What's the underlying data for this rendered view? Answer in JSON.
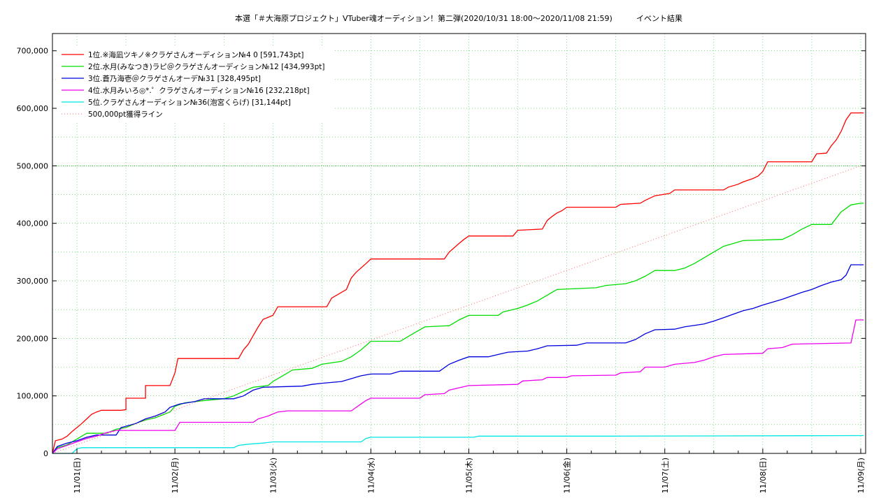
{
  "chart_data": {
    "type": "line",
    "title": "本選「＃大海原プロジェクト」VTuber魂オーディション！第二弾(2020/10/31 18:00〜2020/11/08 21:59)",
    "subtitle": "イベント結果",
    "x_tick_labels": [
      "11/01(日)",
      "11/02(月)",
      "11/03(火)",
      "11/04(水)",
      "11/05(木)",
      "11/06(金)",
      "11/07(土)",
      "11/08(日)",
      "11/09(月)"
    ],
    "y_tick_labels": [
      "0",
      "100,000",
      "200,000",
      "300,000",
      "400,000",
      "500,000",
      "600,000",
      "700,000"
    ],
    "x_unit": "days from 11/01 00:00",
    "xlim": [
      -0.25,
      8.05
    ],
    "ylim": [
      0,
      730000
    ],
    "grid": true,
    "legend_position": "top-left",
    "series": [
      {
        "name": "1位.※海凪ツキノ※クラゲさんオーディション№4 0 [591,743pt]",
        "color": "#ff0000",
        "points": [
          [
            -0.25,
            0
          ],
          [
            -0.22,
            22000
          ],
          [
            -0.15,
            25000
          ],
          [
            -0.1,
            30000
          ],
          [
            -0.05,
            38000
          ],
          [
            0,
            45000
          ],
          [
            0.05,
            52000
          ],
          [
            0.1,
            60000
          ],
          [
            0.15,
            68000
          ],
          [
            0.2,
            72000
          ],
          [
            0.25,
            75000
          ],
          [
            0.45,
            75000
          ],
          [
            0.5,
            76000
          ],
          [
            0.5,
            96000
          ],
          [
            0.7,
            96000
          ],
          [
            0.7,
            118000
          ],
          [
            0.95,
            118000
          ],
          [
            1.0,
            140000
          ],
          [
            1.03,
            165000
          ],
          [
            1.65,
            165000
          ],
          [
            1.7,
            180000
          ],
          [
            1.75,
            190000
          ],
          [
            1.8,
            205000
          ],
          [
            1.85,
            220000
          ],
          [
            1.9,
            233000
          ],
          [
            2.0,
            240000
          ],
          [
            2.05,
            255000
          ],
          [
            2.55,
            255000
          ],
          [
            2.6,
            270000
          ],
          [
            2.75,
            285000
          ],
          [
            2.8,
            305000
          ],
          [
            2.85,
            315000
          ],
          [
            2.95,
            330000
          ],
          [
            3.0,
            338000
          ],
          [
            3.75,
            338000
          ],
          [
            3.8,
            350000
          ],
          [
            3.9,
            365000
          ],
          [
            3.95,
            372000
          ],
          [
            4.0,
            378000
          ],
          [
            4.45,
            378000
          ],
          [
            4.5,
            388000
          ],
          [
            4.75,
            390000
          ],
          [
            4.8,
            405000
          ],
          [
            4.85,
            412000
          ],
          [
            4.9,
            418000
          ],
          [
            4.95,
            422000
          ],
          [
            5.0,
            428000
          ],
          [
            5.5,
            428000
          ],
          [
            5.55,
            433000
          ],
          [
            5.75,
            435000
          ],
          [
            5.8,
            440000
          ],
          [
            5.9,
            448000
          ],
          [
            6.05,
            452000
          ],
          [
            6.1,
            458000
          ],
          [
            6.6,
            458000
          ],
          [
            6.65,
            463000
          ],
          [
            6.75,
            468000
          ],
          [
            6.8,
            472000
          ],
          [
            6.9,
            478000
          ],
          [
            6.95,
            482000
          ],
          [
            7.0,
            490000
          ],
          [
            7.05,
            507000
          ],
          [
            7.5,
            507000
          ],
          [
            7.55,
            521000
          ],
          [
            7.65,
            522000
          ],
          [
            7.7,
            535000
          ],
          [
            7.75,
            545000
          ],
          [
            7.8,
            560000
          ],
          [
            7.85,
            580000
          ],
          [
            7.9,
            592000
          ],
          [
            8.03,
            592000
          ]
        ]
      },
      {
        "name": "2位.水月(みなつき)ラピ＠クラゲさんオーディション№12 [434,993pt]",
        "color": "#00dd00",
        "points": [
          [
            -0.25,
            0
          ],
          [
            -0.2,
            10000
          ],
          [
            -0.1,
            15000
          ],
          [
            0,
            25000
          ],
          [
            0.05,
            30000
          ],
          [
            0.1,
            35000
          ],
          [
            0.3,
            35000
          ],
          [
            0.4,
            42000
          ],
          [
            0.5,
            45000
          ],
          [
            0.6,
            52000
          ],
          [
            0.7,
            58000
          ],
          [
            0.8,
            62000
          ],
          [
            0.95,
            72000
          ],
          [
            1.0,
            82000
          ],
          [
            1.1,
            88000
          ],
          [
            1.3,
            92000
          ],
          [
            1.5,
            95000
          ],
          [
            1.6,
            100000
          ],
          [
            1.7,
            108000
          ],
          [
            1.8,
            115000
          ],
          [
            1.95,
            118000
          ],
          [
            2.0,
            125000
          ],
          [
            2.1,
            135000
          ],
          [
            2.2,
            145000
          ],
          [
            2.4,
            148000
          ],
          [
            2.5,
            155000
          ],
          [
            2.7,
            160000
          ],
          [
            2.8,
            168000
          ],
          [
            2.9,
            180000
          ],
          [
            3.0,
            195000
          ],
          [
            3.3,
            195000
          ],
          [
            3.35,
            200000
          ],
          [
            3.45,
            210000
          ],
          [
            3.55,
            220000
          ],
          [
            3.8,
            222000
          ],
          [
            3.9,
            232000
          ],
          [
            4.0,
            240000
          ],
          [
            4.3,
            240000
          ],
          [
            4.35,
            246000
          ],
          [
            4.5,
            252000
          ],
          [
            4.6,
            258000
          ],
          [
            4.7,
            265000
          ],
          [
            4.8,
            275000
          ],
          [
            4.9,
            285000
          ],
          [
            5.3,
            288000
          ],
          [
            5.4,
            292000
          ],
          [
            5.6,
            295000
          ],
          [
            5.7,
            300000
          ],
          [
            5.8,
            308000
          ],
          [
            5.9,
            318000
          ],
          [
            6.1,
            318000
          ],
          [
            6.2,
            322000
          ],
          [
            6.3,
            330000
          ],
          [
            6.4,
            340000
          ],
          [
            6.5,
            350000
          ],
          [
            6.6,
            360000
          ],
          [
            6.7,
            365000
          ],
          [
            6.8,
            370000
          ],
          [
            7.2,
            372000
          ],
          [
            7.3,
            380000
          ],
          [
            7.4,
            390000
          ],
          [
            7.5,
            398000
          ],
          [
            7.7,
            398000
          ],
          [
            7.8,
            420000
          ],
          [
            7.9,
            432000
          ],
          [
            8.0,
            435000
          ],
          [
            8.03,
            435000
          ]
        ]
      },
      {
        "name": "3位.蒼乃海壱＠クラゲさんオーデ№31 [328,495pt]",
        "color": "#0000dd",
        "points": [
          [
            -0.25,
            0
          ],
          [
            -0.2,
            12000
          ],
          [
            -0.1,
            18000
          ],
          [
            0,
            22000
          ],
          [
            0.1,
            28000
          ],
          [
            0.2,
            32000
          ],
          [
            0.4,
            32000
          ],
          [
            0.45,
            45000
          ],
          [
            0.6,
            52000
          ],
          [
            0.7,
            60000
          ],
          [
            0.8,
            65000
          ],
          [
            0.9,
            72000
          ],
          [
            0.95,
            80000
          ],
          [
            1.05,
            86000
          ],
          [
            1.2,
            90000
          ],
          [
            1.3,
            95000
          ],
          [
            1.6,
            95000
          ],
          [
            1.7,
            100000
          ],
          [
            1.8,
            110000
          ],
          [
            1.9,
            115000
          ],
          [
            2.3,
            117000
          ],
          [
            2.4,
            120000
          ],
          [
            2.5,
            122000
          ],
          [
            2.7,
            125000
          ],
          [
            2.8,
            130000
          ],
          [
            2.9,
            135000
          ],
          [
            3.0,
            138000
          ],
          [
            3.2,
            138000
          ],
          [
            3.3,
            143000
          ],
          [
            3.7,
            143000
          ],
          [
            3.8,
            155000
          ],
          [
            3.9,
            162000
          ],
          [
            4.0,
            168000
          ],
          [
            4.2,
            168000
          ],
          [
            4.3,
            172000
          ],
          [
            4.4,
            176000
          ],
          [
            4.6,
            178000
          ],
          [
            4.7,
            182000
          ],
          [
            4.8,
            187000
          ],
          [
            5.1,
            188000
          ],
          [
            5.2,
            192000
          ],
          [
            5.6,
            192000
          ],
          [
            5.7,
            198000
          ],
          [
            5.8,
            208000
          ],
          [
            5.9,
            215000
          ],
          [
            6.1,
            216000
          ],
          [
            6.2,
            220000
          ],
          [
            6.4,
            225000
          ],
          [
            6.5,
            230000
          ],
          [
            6.6,
            236000
          ],
          [
            6.7,
            242000
          ],
          [
            6.8,
            248000
          ],
          [
            6.9,
            252000
          ],
          [
            7.0,
            258000
          ],
          [
            7.1,
            263000
          ],
          [
            7.2,
            268000
          ],
          [
            7.3,
            274000
          ],
          [
            7.4,
            280000
          ],
          [
            7.5,
            285000
          ],
          [
            7.6,
            292000
          ],
          [
            7.7,
            298000
          ],
          [
            7.8,
            302000
          ],
          [
            7.85,
            310000
          ],
          [
            7.9,
            328000
          ],
          [
            8.03,
            328000
          ]
        ]
      },
      {
        "name": "4位.水月みいろ◎*.゜クラゲさんオーディション№16 [232,218pt]",
        "color": "#ee00ee",
        "points": [
          [
            -0.25,
            0
          ],
          [
            -0.2,
            8000
          ],
          [
            -0.1,
            14000
          ],
          [
            0,
            20000
          ],
          [
            0.1,
            26000
          ],
          [
            0.2,
            30000
          ],
          [
            0.3,
            36000
          ],
          [
            0.4,
            40000
          ],
          [
            1.0,
            40000
          ],
          [
            1.05,
            54000
          ],
          [
            1.8,
            54000
          ],
          [
            1.85,
            60000
          ],
          [
            1.95,
            65000
          ],
          [
            2.05,
            72000
          ],
          [
            2.15,
            74000
          ],
          [
            2.8,
            74000
          ],
          [
            2.85,
            80000
          ],
          [
            2.9,
            86000
          ],
          [
            2.95,
            92000
          ],
          [
            3.0,
            96000
          ],
          [
            3.5,
            96000
          ],
          [
            3.55,
            102000
          ],
          [
            3.75,
            104000
          ],
          [
            3.8,
            110000
          ],
          [
            4.0,
            118000
          ],
          [
            4.5,
            120000
          ],
          [
            4.55,
            126000
          ],
          [
            4.75,
            128000
          ],
          [
            4.8,
            132000
          ],
          [
            5.0,
            132000
          ],
          [
            5.05,
            135000
          ],
          [
            5.5,
            136000
          ],
          [
            5.55,
            140000
          ],
          [
            5.75,
            142000
          ],
          [
            5.8,
            150000
          ],
          [
            6.0,
            150000
          ],
          [
            6.1,
            155000
          ],
          [
            6.3,
            158000
          ],
          [
            6.4,
            162000
          ],
          [
            6.5,
            168000
          ],
          [
            6.6,
            172000
          ],
          [
            7.0,
            174000
          ],
          [
            7.05,
            182000
          ],
          [
            7.2,
            184000
          ],
          [
            7.3,
            190000
          ],
          [
            7.9,
            192000
          ],
          [
            7.95,
            232000
          ],
          [
            8.03,
            232000
          ]
        ]
      },
      {
        "name": "5位.クラゲさんオーディション№36(泡宮くらげ) [31,144pt]",
        "color": "#00e5e5",
        "points": [
          [
            -0.25,
            0
          ],
          [
            -0.05,
            0
          ],
          [
            0.0,
            8000
          ],
          [
            0.05,
            10000
          ],
          [
            1.6,
            10000
          ],
          [
            1.65,
            14000
          ],
          [
            1.75,
            16000
          ],
          [
            1.9,
            18000
          ],
          [
            2.0,
            20000
          ],
          [
            2.9,
            20000
          ],
          [
            2.95,
            26000
          ],
          [
            3.0,
            28000
          ],
          [
            4.05,
            28000
          ],
          [
            4.1,
            30000
          ],
          [
            5.5,
            30000
          ],
          [
            8.03,
            31000
          ]
        ]
      },
      {
        "name": "500,000pt獲得ライン",
        "color": "#ff6666",
        "dashed": true,
        "points": [
          [
            -0.25,
            0
          ],
          [
            8.0,
            500000
          ]
        ]
      }
    ],
    "hlines": [
      {
        "y": 500000,
        "color": "#00aa00"
      }
    ]
  }
}
